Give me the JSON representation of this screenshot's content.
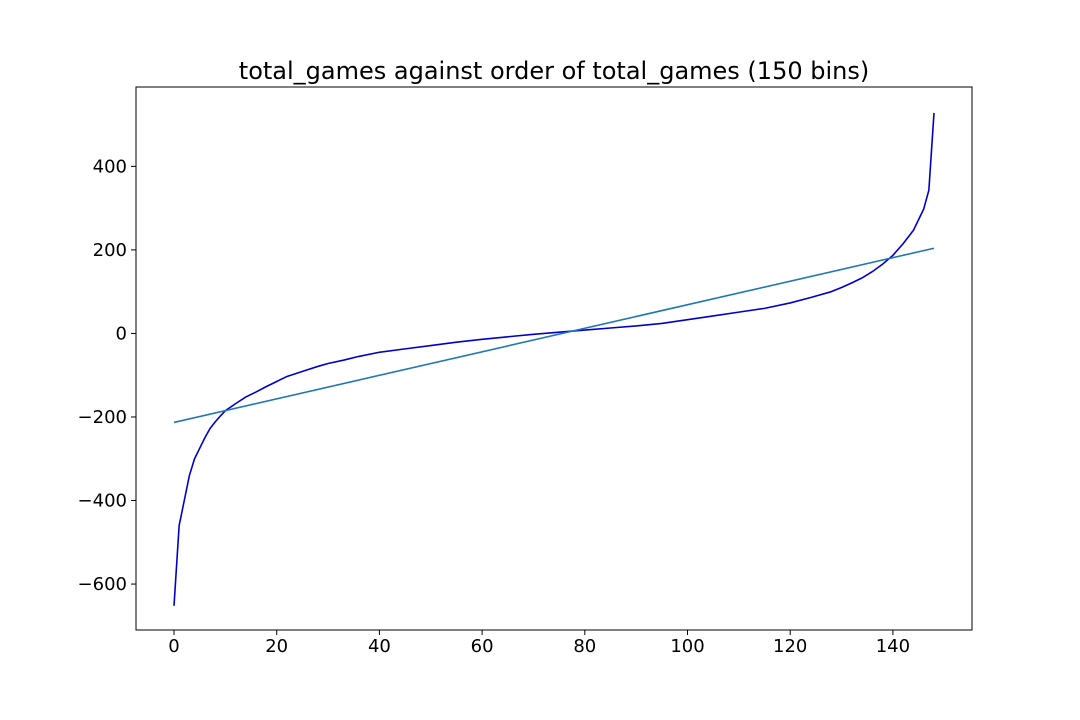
{
  "chart_data": {
    "type": "line",
    "title": "total_games against order of total_games (150 bins)",
    "xlabel": "",
    "ylabel": "",
    "xlim": [
      -7.4,
      155.4
    ],
    "ylim": [
      -710,
      590
    ],
    "x_ticks": [
      0,
      20,
      40,
      60,
      80,
      100,
      120,
      140
    ],
    "y_ticks": [
      -600,
      -400,
      -200,
      0,
      200,
      400
    ],
    "x_tick_labels": [
      "0",
      "20",
      "40",
      "60",
      "80",
      "100",
      "120",
      "140"
    ],
    "y_tick_labels": [
      "−600",
      "−400",
      "−200",
      "0",
      "200",
      "400"
    ],
    "grid": false,
    "legend": false,
    "series": [
      {
        "color": "#0000cc",
        "x": [
          0,
          1,
          2,
          3,
          4,
          5,
          6,
          7,
          8,
          9,
          10,
          12,
          14,
          16,
          18,
          20,
          22,
          24,
          26,
          28,
          30,
          33,
          36,
          40,
          45,
          50,
          55,
          60,
          65,
          70,
          75,
          80,
          85,
          90,
          95,
          100,
          105,
          110,
          115,
          120,
          124,
          128,
          130,
          132,
          134,
          136,
          138,
          140,
          142,
          144,
          146,
          147,
          148
        ],
        "y": [
          -652,
          -460,
          -400,
          -340,
          -300,
          -275,
          -250,
          -228,
          -212,
          -198,
          -185,
          -168,
          -152,
          -140,
          -127,
          -115,
          -103,
          -95,
          -87,
          -79,
          -72,
          -64,
          -55,
          -45,
          -37,
          -29,
          -21,
          -14,
          -8,
          -2,
          3,
          8,
          13,
          18,
          24,
          33,
          42,
          51,
          60,
          73,
          86,
          100,
          110,
          121,
          133,
          148,
          166,
          187,
          215,
          247,
          298,
          343,
          528
        ]
      },
      {
        "color": "#1f77b4",
        "x": [
          0,
          148
        ],
        "y": [
          -213,
          204
        ]
      }
    ]
  }
}
